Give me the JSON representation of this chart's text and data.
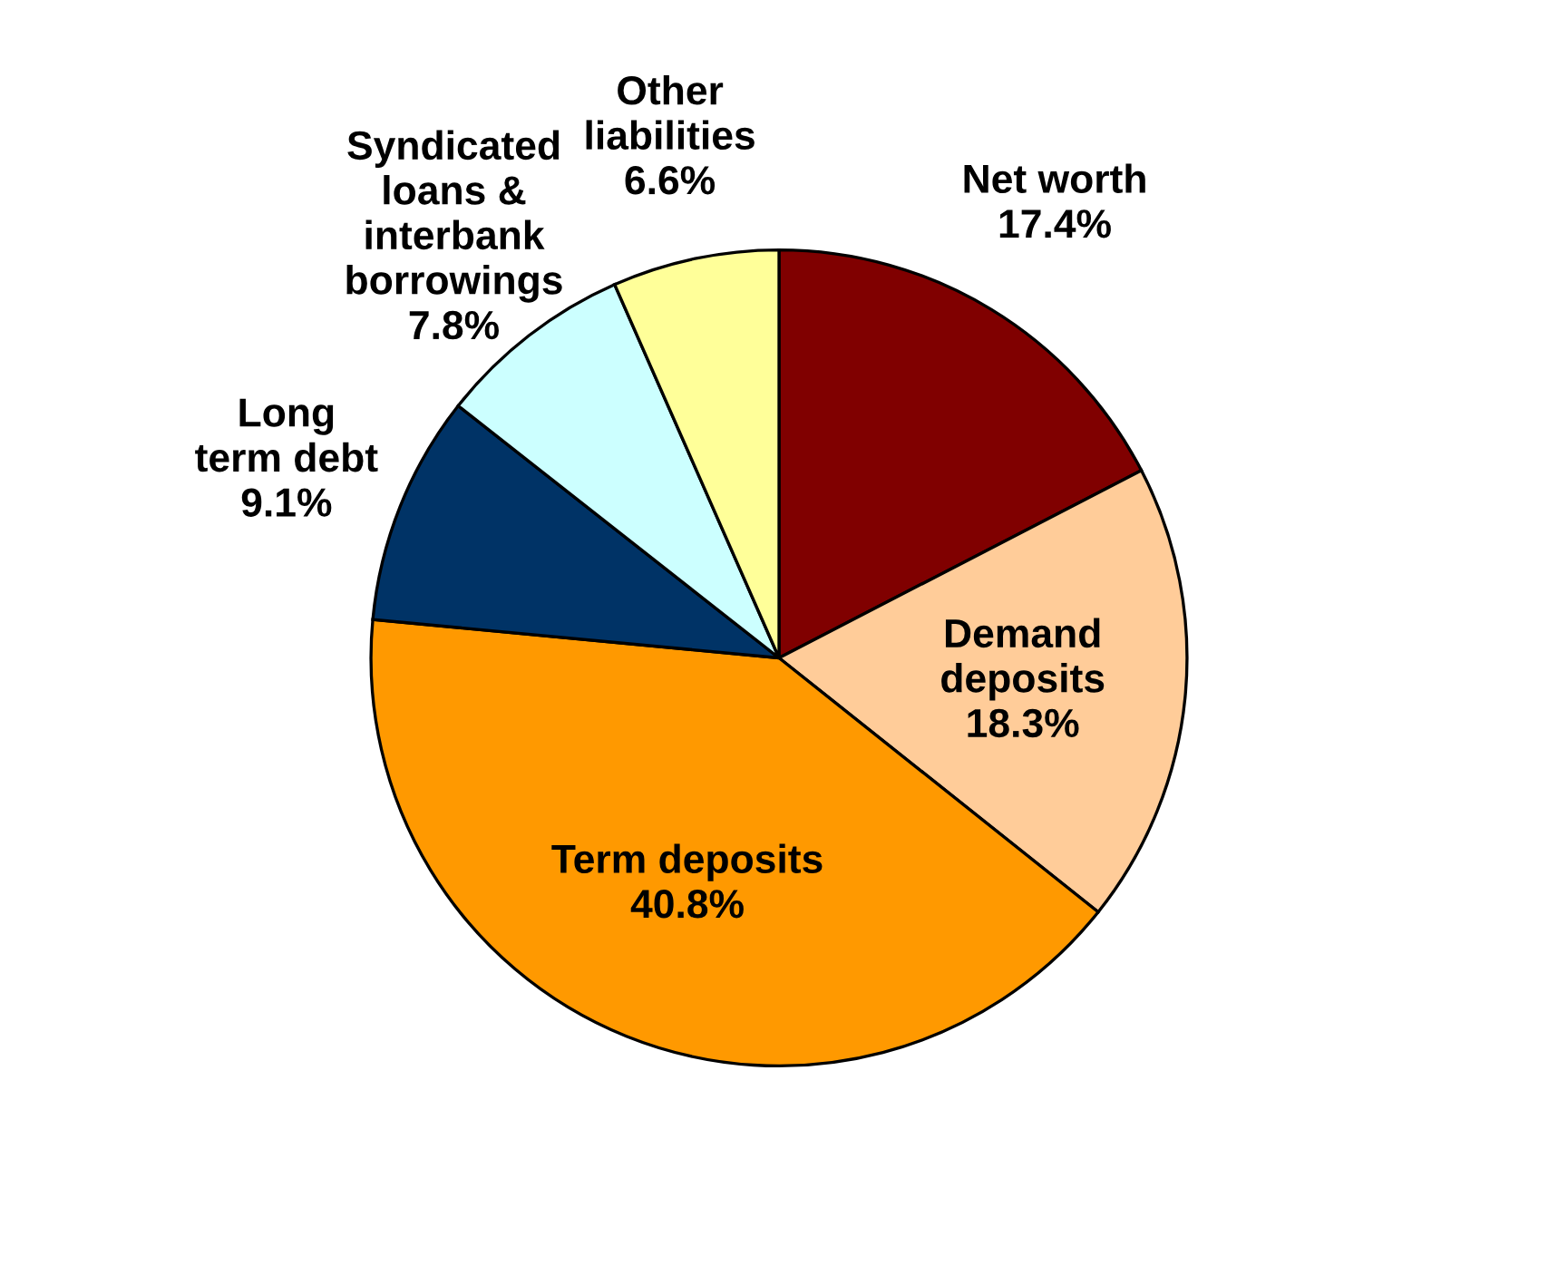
{
  "chart_data": {
    "type": "pie",
    "categories": [
      "Net worth",
      "Demand\ndeposits",
      "Term deposits",
      "Long\nterm debt",
      "Syndicated\nloans &\ninterbank\nborrowings",
      "Other\nliabilities"
    ],
    "values": [
      17.4,
      18.3,
      40.8,
      9.1,
      7.8,
      6.6
    ],
    "value_labels": [
      "17.4%",
      "18.3%",
      "40.8%",
      "9.1%",
      "7.8%",
      "6.6%"
    ],
    "colors": [
      "#800000",
      "#ffcc99",
      "#ff9900",
      "#003366",
      "#ccffff",
      "#ffff99"
    ],
    "legend": false
  }
}
